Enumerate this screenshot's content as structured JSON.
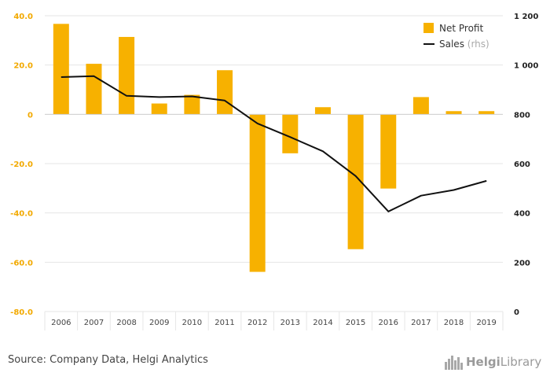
{
  "chart_data": {
    "type": "bar",
    "title": "",
    "categories": [
      "2006",
      "2007",
      "2008",
      "2009",
      "2010",
      "2011",
      "2012",
      "2013",
      "2014",
      "2015",
      "2016",
      "2017",
      "2018",
      "2019"
    ],
    "series": [
      {
        "name": "Net Profit",
        "type": "bar",
        "axis": "left",
        "color": "#f7b100",
        "values": [
          36.7,
          20.5,
          31.4,
          4.4,
          7.9,
          17.9,
          -63.9,
          -15.8,
          2.9,
          -54.7,
          -30.1,
          7.0,
          1.3,
          1.3
        ]
      },
      {
        "name": "Sales",
        "name_suffix": "(rhs)",
        "type": "line",
        "axis": "right",
        "color": "#111111",
        "values": [
          951,
          955,
          875,
          870,
          873,
          856,
          763,
          708,
          650,
          550,
          406,
          470,
          493,
          530
        ]
      }
    ],
    "y_left": {
      "min": -80,
      "max": 40,
      "ticks": [
        40,
        20,
        0,
        -20,
        -40,
        -60,
        -80
      ],
      "tick_labels": [
        "40.0",
        "20.0",
        "0",
        "-20.0",
        "-40.0",
        "-60.0",
        "-80.0"
      ],
      "tick_color": "#f2a900"
    },
    "y_right": {
      "min": 0,
      "max": 1200,
      "ticks": [
        1200,
        1000,
        800,
        600,
        400,
        200,
        0
      ],
      "tick_labels": [
        "1 200",
        "1 000",
        "800",
        "600",
        "400",
        "200",
        "0"
      ]
    },
    "grid": true,
    "legend_position": "top-right"
  },
  "footer": {
    "source": "Source: Company Data, Helgi Analytics",
    "logo_bold": "Helgi",
    "logo_regular": "Library"
  }
}
